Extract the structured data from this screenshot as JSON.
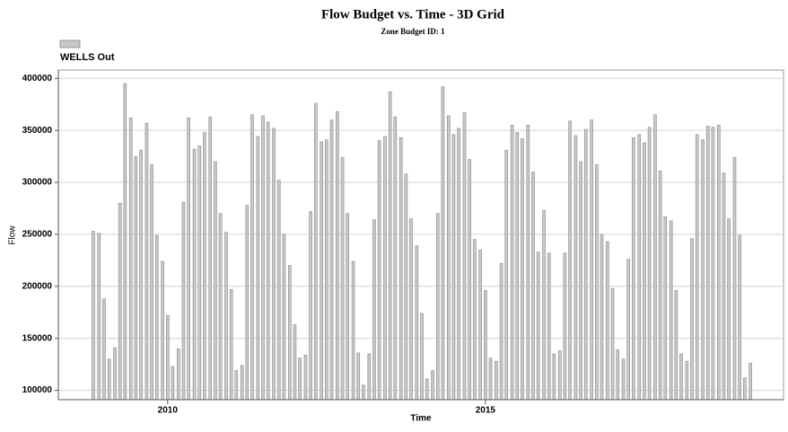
{
  "chart_data": {
    "type": "bar",
    "title": "Flow Budget vs. Time - 3D Grid",
    "subtitle": "Zone Budget ID: 1",
    "x_label": "Time",
    "y_label": "Flow",
    "legend_position": "top-left",
    "grid": true,
    "xlim": [
      2008.28,
      2019.69
    ],
    "xticks": [
      2010,
      2015
    ],
    "ylim": [
      91000,
      408000
    ],
    "yticks": [
      100000,
      150000,
      200000,
      250000,
      300000,
      350000,
      400000
    ],
    "x": [
      2008.83,
      2008.92,
      2009.0,
      2009.08,
      2009.17,
      2009.25,
      2009.33,
      2009.42,
      2009.5,
      2009.58,
      2009.67,
      2009.75,
      2009.83,
      2009.92,
      2010.0,
      2010.08,
      2010.17,
      2010.25,
      2010.33,
      2010.42,
      2010.5,
      2010.58,
      2010.67,
      2010.75,
      2010.83,
      2010.92,
      2011.0,
      2011.08,
      2011.17,
      2011.25,
      2011.33,
      2011.42,
      2011.5,
      2011.58,
      2011.67,
      2011.75,
      2011.83,
      2011.92,
      2012.0,
      2012.08,
      2012.17,
      2012.25,
      2012.33,
      2012.42,
      2012.5,
      2012.58,
      2012.67,
      2012.75,
      2012.83,
      2012.92,
      2013.0,
      2013.08,
      2013.17,
      2013.25,
      2013.33,
      2013.42,
      2013.5,
      2013.58,
      2013.67,
      2013.75,
      2013.83,
      2013.92,
      2014.0,
      2014.08,
      2014.17,
      2014.25,
      2014.33,
      2014.42,
      2014.5,
      2014.58,
      2014.67,
      2014.75,
      2014.83,
      2014.92,
      2015.0,
      2015.08,
      2015.17,
      2015.25,
      2015.33,
      2015.42,
      2015.5,
      2015.58,
      2015.67,
      2015.75,
      2015.83,
      2015.92,
      2016.0,
      2016.08,
      2016.17,
      2016.25,
      2016.33,
      2016.42,
      2016.5,
      2016.58,
      2016.67,
      2016.75,
      2016.83,
      2016.92,
      2017.0,
      2017.08,
      2017.17,
      2017.25,
      2017.33,
      2017.42,
      2017.5,
      2017.58,
      2017.67,
      2017.75,
      2017.83,
      2017.92,
      2018.0,
      2018.08,
      2018.17,
      2018.25,
      2018.33,
      2018.42,
      2018.5,
      2018.58,
      2018.67,
      2018.75,
      2018.83,
      2018.92,
      2019.0,
      2019.08,
      2019.17
    ],
    "series": [
      {
        "name": "WELLS Out",
        "color": "#c8c8c8",
        "values": [
          253000,
          251000,
          188000,
          130000,
          141000,
          280000,
          395000,
          362000,
          325000,
          331000,
          357000,
          317000,
          249000,
          224000,
          172000,
          123000,
          140000,
          281000,
          362000,
          332000,
          335000,
          348000,
          363000,
          320000,
          270000,
          252000,
          197000,
          119000,
          124000,
          278000,
          365000,
          344000,
          364000,
          358000,
          352000,
          302000,
          250000,
          220000,
          163000,
          131000,
          134000,
          272000,
          376000,
          339000,
          341000,
          360000,
          368000,
          324000,
          270000,
          224000,
          136000,
          105000,
          135000,
          264000,
          340000,
          344000,
          387000,
          363000,
          343000,
          308000,
          265000,
          239000,
          174000,
          111000,
          119000,
          270000,
          392000,
          364000,
          346000,
          352000,
          367000,
          322000,
          245000,
          235000,
          196000,
          131000,
          128000,
          222000,
          331000,
          355000,
          348000,
          342000,
          355000,
          310000,
          233000,
          273000,
          232000,
          135000,
          138000,
          232000,
          359000,
          345000,
          320000,
          351000,
          360000,
          317000,
          250000,
          243000,
          198000,
          139000,
          130000,
          226000,
          343000,
          346000,
          338000,
          353000,
          365000,
          311000,
          267000,
          263000,
          196000,
          135000,
          128000,
          246000,
          346000,
          341000,
          354000,
          353000,
          355000,
          309000,
          265000,
          324000,
          249000,
          112000,
          126000
        ]
      }
    ]
  }
}
